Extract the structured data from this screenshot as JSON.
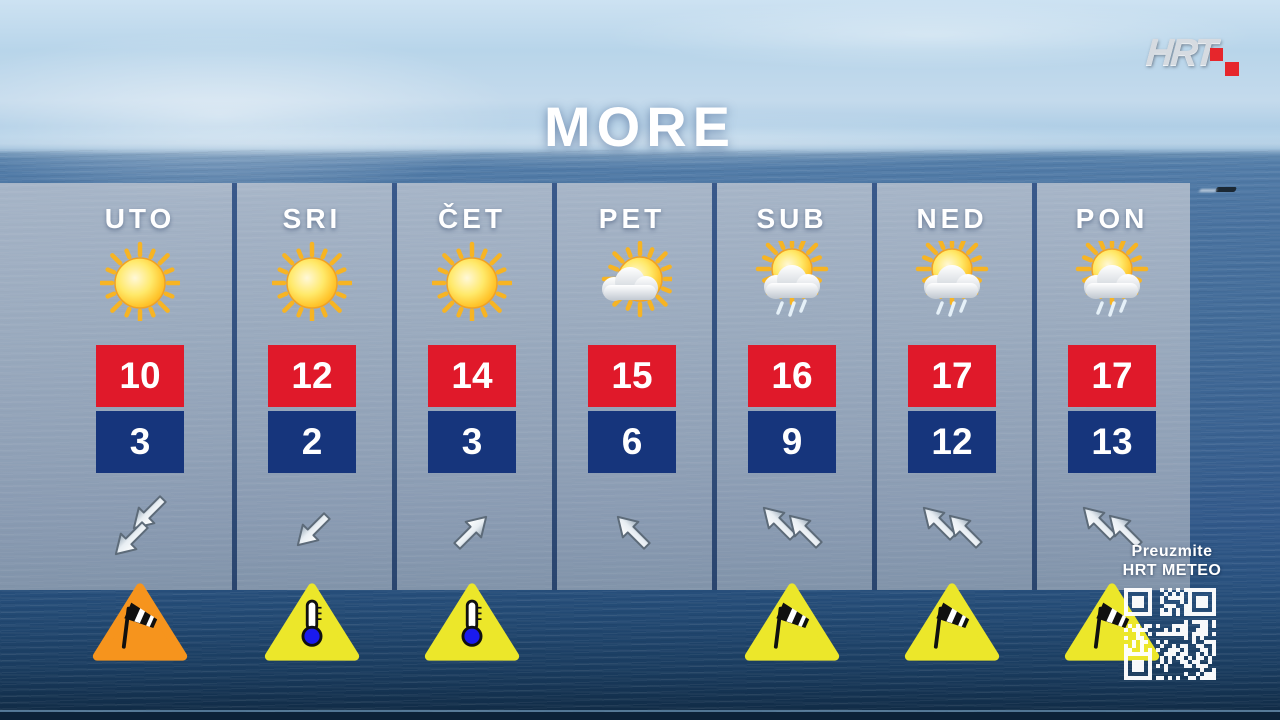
{
  "title": "MORE",
  "logo": {
    "text": "HRT"
  },
  "promo": {
    "line1": "Preuzmite",
    "line2": "HRT METEO"
  },
  "colors": {
    "high_box": "#e0192a",
    "low_box": "#16357c",
    "warning_orange": "#f6941d",
    "warning_yellow": "#ece72a",
    "separator": "#23406e",
    "title_text": "#ffffff"
  },
  "forecast": {
    "days": [
      {
        "label": "UTO",
        "icon": "sun",
        "hi": "10",
        "lo": "3",
        "wind": {
          "dir": "down-left",
          "count": 2
        },
        "warning": {
          "type": "windsock",
          "color": "orange"
        }
      },
      {
        "label": "SRI",
        "icon": "sun",
        "hi": "12",
        "lo": "2",
        "wind": {
          "dir": "down-left",
          "count": 1
        },
        "warning": {
          "type": "thermometer",
          "color": "yellow"
        }
      },
      {
        "label": "ČET",
        "icon": "sun",
        "hi": "14",
        "lo": "3",
        "wind": {
          "dir": "up-right",
          "count": 1
        },
        "warning": {
          "type": "thermometer",
          "color": "yellow"
        }
      },
      {
        "label": "PET",
        "icon": "sun-cloud",
        "hi": "15",
        "lo": "6",
        "wind": {
          "dir": "up-left",
          "count": 1
        },
        "warning": null
      },
      {
        "label": "SUB",
        "icon": "sun-rain",
        "hi": "16",
        "lo": "9",
        "wind": {
          "dir": "up-left",
          "count": 2
        },
        "warning": {
          "type": "windsock",
          "color": "yellow"
        }
      },
      {
        "label": "NED",
        "icon": "sun-rain",
        "hi": "17",
        "lo": "12",
        "wind": {
          "dir": "up-left",
          "count": 2
        },
        "warning": {
          "type": "windsock",
          "color": "yellow"
        }
      },
      {
        "label": "PON",
        "icon": "sun-rain",
        "hi": "17",
        "lo": "13",
        "wind": {
          "dir": "up-left",
          "count": 2
        },
        "warning": {
          "type": "windsock",
          "color": "yellow"
        }
      }
    ]
  },
  "chart_data": {
    "type": "table",
    "title": "MORE",
    "categories": [
      "UTO",
      "SRI",
      "ČET",
      "PET",
      "SUB",
      "NED",
      "PON"
    ],
    "series": [
      {
        "name": "high_temp_c",
        "values": [
          10,
          12,
          14,
          15,
          16,
          17,
          17
        ]
      },
      {
        "name": "low_temp_c",
        "values": [
          3,
          2,
          3,
          6,
          9,
          12,
          13
        ]
      }
    ],
    "conditions": [
      "sunny",
      "sunny",
      "sunny",
      "partly-cloudy",
      "sun-rain-showers",
      "sun-rain-showers",
      "sun-rain-showers"
    ],
    "wind_arrows": [
      {
        "dir": "down-left",
        "strength": 2
      },
      {
        "dir": "down-left",
        "strength": 1
      },
      {
        "dir": "up-right",
        "strength": 1
      },
      {
        "dir": "up-left",
        "strength": 1
      },
      {
        "dir": "up-left",
        "strength": 2
      },
      {
        "dir": "up-left",
        "strength": 2
      },
      {
        "dir": "up-left",
        "strength": 2
      }
    ],
    "warnings": [
      "wind-orange",
      "cold-yellow",
      "cold-yellow",
      null,
      "wind-yellow",
      "wind-yellow",
      "wind-yellow"
    ]
  }
}
